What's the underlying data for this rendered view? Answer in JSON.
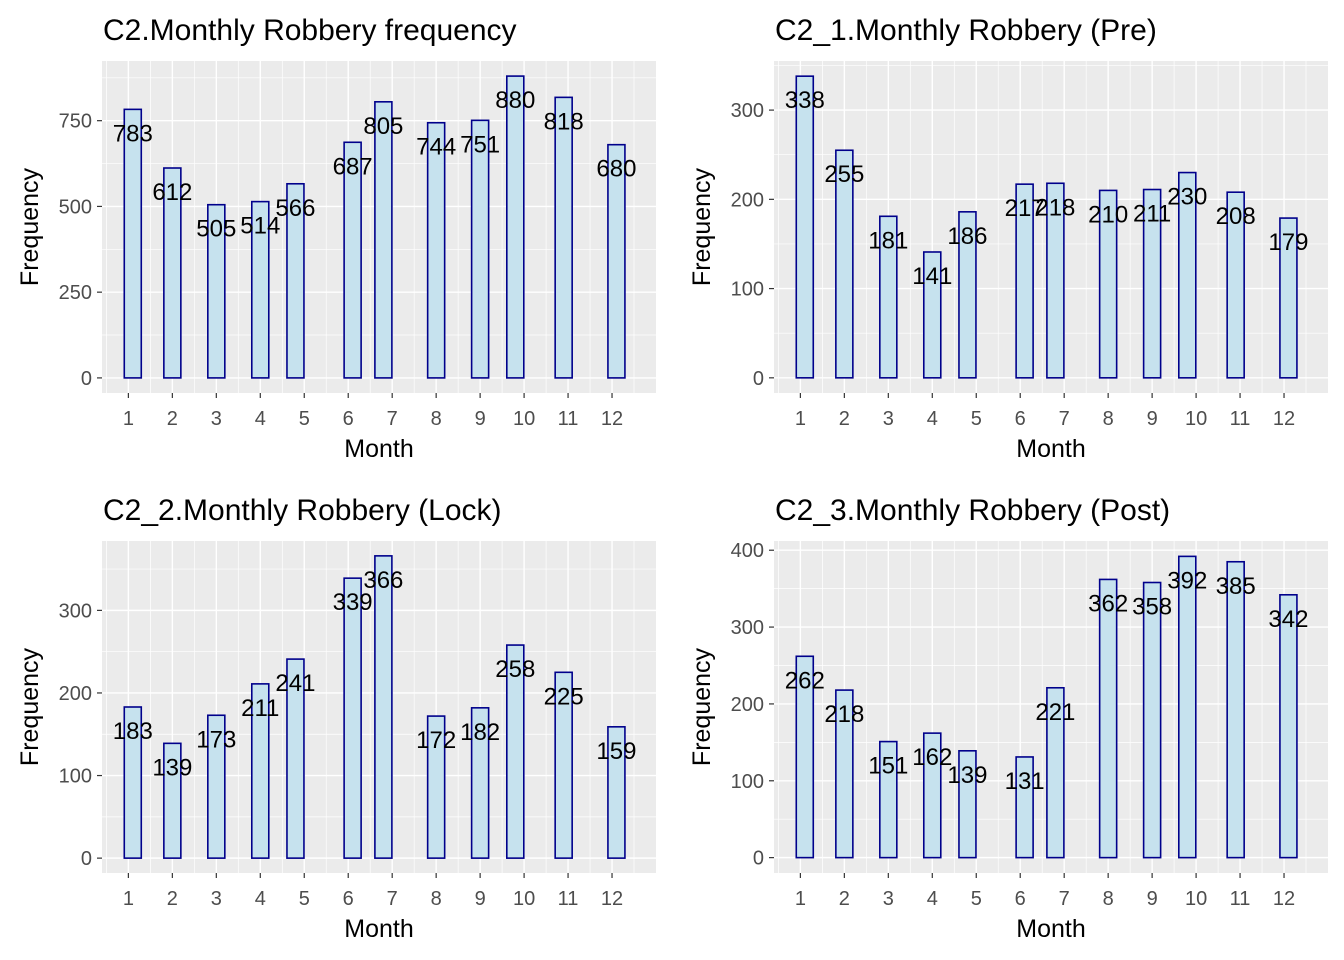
{
  "style": {
    "panel_bg": "#ebebeb",
    "grid": "#ffffff",
    "bar_fill": "#c6e2ee",
    "bar_stroke": "#00008b",
    "tick_color": "#4d4d4d"
  },
  "chart_data": [
    {
      "type": "bar",
      "title": "C2.Monthly Robbery frequency",
      "xlabel": "Month",
      "ylabel": "Frequency",
      "categories": [
        "1",
        "2",
        "3",
        "4",
        "5",
        "6",
        "7",
        "8",
        "9",
        "10",
        "11",
        "12"
      ],
      "x": [
        1.1,
        2.0,
        3.0,
        4.0,
        4.8,
        6.1,
        6.8,
        8.0,
        9.0,
        9.8,
        10.9,
        12.1
      ],
      "values": [
        783,
        612,
        505,
        514,
        566,
        687,
        805,
        744,
        751,
        880,
        818,
        680
      ],
      "yticks": [
        0,
        250,
        500,
        750
      ],
      "ylim": [
        -44,
        924
      ],
      "xlim": [
        0.4,
        13.0
      ]
    },
    {
      "type": "bar",
      "title": "C2_1.Monthly Robbery (Pre)",
      "xlabel": "Month",
      "ylabel": "Frequency",
      "categories": [
        "1",
        "2",
        "3",
        "4",
        "5",
        "6",
        "7",
        "8",
        "9",
        "10",
        "11",
        "12"
      ],
      "x": [
        1.1,
        2.0,
        3.0,
        4.0,
        4.8,
        6.1,
        6.8,
        8.0,
        9.0,
        9.8,
        10.9,
        12.1
      ],
      "values": [
        338,
        255,
        181,
        141,
        186,
        217,
        218,
        210,
        211,
        230,
        208,
        179
      ],
      "yticks": [
        0,
        100,
        200,
        300
      ],
      "ylim": [
        -17,
        355
      ],
      "xlim": [
        0.4,
        13.0
      ]
    },
    {
      "type": "bar",
      "title": "C2_2.Monthly Robbery (Lock)",
      "xlabel": "Month",
      "ylabel": "Frequency",
      "categories": [
        "1",
        "2",
        "3",
        "4",
        "5",
        "6",
        "7",
        "8",
        "9",
        "10",
        "11",
        "12"
      ],
      "x": [
        1.1,
        2.0,
        3.0,
        4.0,
        4.8,
        6.1,
        6.8,
        8.0,
        9.0,
        9.8,
        10.9,
        12.1
      ],
      "values": [
        183,
        139,
        173,
        211,
        241,
        339,
        366,
        172,
        182,
        258,
        225,
        159
      ],
      "yticks": [
        0,
        100,
        200,
        300
      ],
      "ylim": [
        -18,
        384
      ],
      "xlim": [
        0.4,
        13.0
      ]
    },
    {
      "type": "bar",
      "title": "C2_3.Monthly Robbery (Post)",
      "xlabel": "Month",
      "ylabel": "Frequency",
      "categories": [
        "1",
        "2",
        "3",
        "4",
        "5",
        "6",
        "7",
        "8",
        "9",
        "10",
        "11",
        "12"
      ],
      "x": [
        1.1,
        2.0,
        3.0,
        4.0,
        4.8,
        6.1,
        6.8,
        8.0,
        9.0,
        9.8,
        10.9,
        12.1
      ],
      "values": [
        262,
        218,
        151,
        162,
        139,
        131,
        221,
        362,
        358,
        392,
        385,
        342
      ],
      "yticks": [
        0,
        100,
        200,
        300,
        400
      ],
      "ylim": [
        -20,
        412
      ],
      "xlim": [
        0.4,
        13.0
      ]
    }
  ]
}
